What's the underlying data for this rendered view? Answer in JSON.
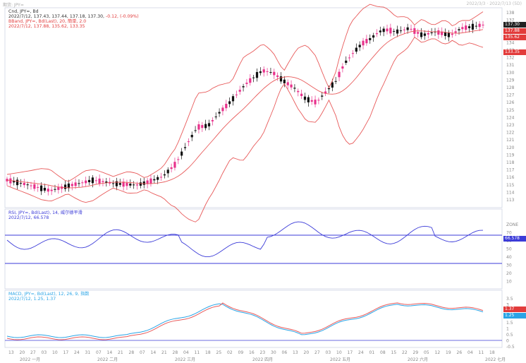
{
  "header": {
    "left": "期货: JPY=",
    "right": "2022/3/3 · 2022/7/13 (5D)"
  },
  "price_panel": {
    "line1": "Cnd, JPY=, Bd",
    "line2_prefix": "2022/7/12, 137.43, 137.44, 137.18, 137.30,",
    "line2_change": "-0.12, (-0.09%)",
    "line3": "BBand, JPY=, Bd(Last), 20, 簡単, 2.0",
    "line4": "2022/7/12, 137.88, 135.62, 133.35",
    "tags": [
      {
        "text": "137.30",
        "color": "#222222"
      },
      {
        "text": "137.88",
        "color": "#e23b3b"
      },
      {
        "text": "135.62",
        "color": "#e23b3b"
      },
      {
        "text": "133.35",
        "color": "#e23b3b"
      }
    ],
    "y_ticks": [
      "138",
      "137",
      "136",
      "135",
      "134",
      "133",
      "132",
      "131",
      "130",
      "129",
      "128",
      "127",
      "126",
      "125",
      "124",
      "123",
      "122",
      "121",
      "120",
      "119",
      "118",
      "117",
      "116",
      "115",
      "114",
      "113"
    ]
  },
  "rsi_panel": {
    "line1": "RSI, JPY=, Bd(Last), 14, 威尔德平滑",
    "line2": "2022/7/12, 66.578",
    "y_ticks": [
      "ZONE",
      "70",
      "60",
      "50",
      "40",
      "30",
      "20",
      "10"
    ],
    "tag": {
      "text": "66.578",
      "color": "#3b3bd8"
    }
  },
  "macd_panel": {
    "line1": "MACD, JPY=, Bd(Last), 12, 26, 9, 指数",
    "line2": "2022/7/12, 1.25, 1.37",
    "y_ticks": [
      "3.5",
      "3",
      "2.5",
      "2",
      "1.5",
      "1",
      "0.5",
      "0",
      "-0.5"
    ],
    "tags": [
      {
        "text": "1.37",
        "color": "#e23b3b"
      },
      {
        "text": "1.25",
        "color": "#2aa4e6"
      }
    ]
  },
  "x_axis": {
    "days": [
      "13",
      "20",
      "27",
      "03",
      "10",
      "17",
      "24",
      "31",
      "07",
      "14",
      "21",
      "28",
      "07",
      "14",
      "21",
      "28",
      "04",
      "11",
      "18",
      "25",
      "02",
      "09",
      "16",
      "23",
      "30",
      "06",
      "13",
      "20",
      "27",
      "03",
      "10",
      "17",
      "24",
      "01",
      "08",
      "15",
      "22",
      "29",
      "05",
      "12",
      "19",
      "26",
      "04",
      "11",
      "18"
    ],
    "months": [
      "2022 一月",
      "2022 二月",
      "2022 三月",
      "2022 四月",
      "2022 五月",
      "2022 六月",
      "2022 七月"
    ]
  },
  "colors": {
    "up": "#e8318b",
    "down": "#111111",
    "band": "#e85a5a",
    "rsi": "#3b3bd8",
    "macd": "#2aa4e6",
    "signal": "#e85a5a",
    "grid": "#dfe3ef"
  }
}
